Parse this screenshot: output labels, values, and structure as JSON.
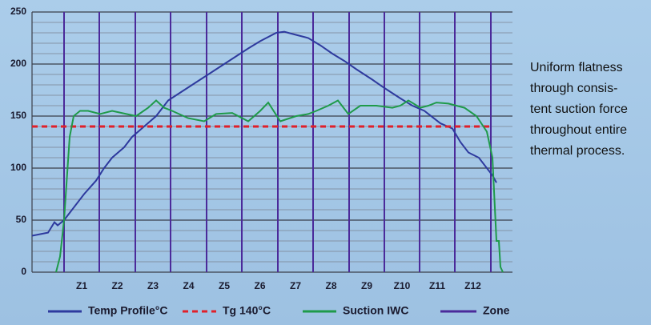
{
  "chart_data": {
    "type": "line",
    "ylim": [
      0,
      250
    ],
    "yticks": [
      0,
      50,
      100,
      150,
      200,
      250
    ],
    "minor_yticks": [
      10,
      20,
      30,
      40,
      60,
      70,
      80,
      90,
      110,
      120,
      130,
      140,
      160,
      170,
      180,
      190,
      210,
      220,
      230,
      240
    ],
    "xlim": [
      0,
      605
    ],
    "grid": true,
    "zone_boundaries": [
      40,
      84,
      129,
      173,
      218,
      262,
      307,
      351,
      396,
      440,
      484,
      528,
      573
    ],
    "zones": [
      "Z1",
      "Z2",
      "Z3",
      "Z4",
      "Z5",
      "Z6",
      "Z7",
      "Z8",
      "Z9",
      "Z10",
      "Z11",
      "Z12"
    ],
    "zone_name": "Zone",
    "zone_color": "#4b2a9a",
    "series": [
      {
        "name": "Temp Profile°C",
        "color": "#2e3a9e",
        "dash": false,
        "x": [
          0,
          20,
          28,
          32,
          40,
          50,
          65,
          80,
          90,
          100,
          115,
          125,
          140,
          155,
          170,
          190,
          210,
          230,
          250,
          270,
          285,
          305,
          315,
          330,
          345,
          360,
          375,
          390,
          405,
          425,
          440,
          460,
          475,
          490,
          510,
          525,
          535,
          545,
          558,
          568,
          575,
          580
        ],
        "values": [
          35,
          38,
          48,
          45,
          50,
          60,
          75,
          88,
          100,
          110,
          120,
          130,
          140,
          150,
          165,
          175,
          185,
          195,
          205,
          215,
          222,
          230,
          231,
          228,
          225,
          218,
          210,
          203,
          195,
          185,
          177,
          167,
          160,
          155,
          143,
          138,
          125,
          115,
          110,
          100,
          93,
          86
        ]
      },
      {
        "name": "Tg 140°C",
        "color": "#e0202a",
        "dash": true,
        "x": [
          0,
          572
        ],
        "values": [
          140,
          140
        ]
      },
      {
        "name": "Suction IWC",
        "color": "#1f9a4a",
        "dash": false,
        "x": [
          30,
          35,
          40,
          47,
          52,
          60,
          70,
          85,
          100,
          130,
          145,
          155,
          165,
          175,
          195,
          215,
          230,
          250,
          270,
          285,
          295,
          310,
          330,
          345,
          355,
          370,
          382,
          395,
          410,
          430,
          450,
          460,
          470,
          485,
          495,
          505,
          520,
          540,
          555,
          568,
          575,
          580,
          583,
          585,
          588
        ],
        "values": [
          0,
          15,
          50,
          130,
          150,
          155,
          155,
          152,
          155,
          150,
          158,
          165,
          158,
          155,
          148,
          145,
          152,
          153,
          145,
          155,
          163,
          145,
          150,
          152,
          155,
          160,
          165,
          152,
          160,
          160,
          158,
          160,
          165,
          158,
          160,
          163,
          162,
          158,
          150,
          135,
          110,
          30,
          30,
          5,
          0
        ]
      }
    ],
    "annotation": [
      "Uniform flatness",
      "through consis-",
      "tent suction force",
      "throughout entire",
      "thermal process."
    ]
  }
}
